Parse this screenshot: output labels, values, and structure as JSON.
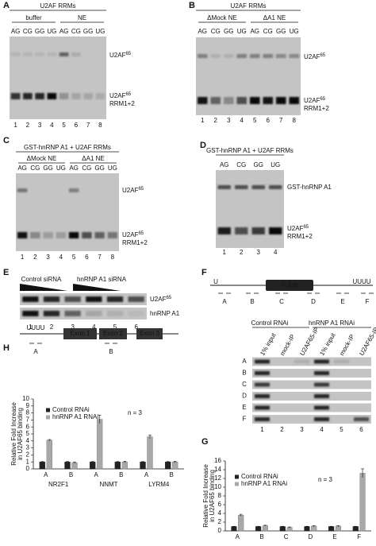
{
  "panels": {
    "A": {
      "label": "A",
      "title": "U2AF RRMs",
      "groups": [
        "buffer",
        "NE"
      ],
      "lanes": [
        "AG",
        "CG",
        "GG",
        "UG",
        "AG",
        "CG",
        "GG",
        "UG"
      ],
      "lane_numbers": [
        1,
        2,
        3,
        4,
        5,
        6,
        7,
        8
      ],
      "markers": [
        {
          "text": "U2AF",
          "sup": "65"
        },
        {
          "text": "U2AF",
          "sup": "65",
          "line2": "RRM1+2"
        }
      ]
    },
    "B": {
      "label": "B",
      "title": "U2AF RRMs",
      "groups": [
        "ΔMock NE",
        "ΔA1 NE"
      ],
      "lanes": [
        "AG",
        "CG",
        "GG",
        "UG",
        "AG",
        "CG",
        "GG",
        "UG"
      ],
      "lane_numbers": [
        1,
        2,
        3,
        4,
        5,
        6,
        7,
        8
      ],
      "markers": [
        {
          "text": "U2AF",
          "sup": "65"
        },
        {
          "text": "U2AF",
          "sup": "65",
          "line2": "RRM1+2"
        }
      ]
    },
    "C": {
      "label": "C",
      "title": "GST-hnRNP A1 + U2AF RRMs",
      "groups": [
        "ΔMock NE",
        "ΔA1 NE"
      ],
      "lanes": [
        "AG",
        "CG",
        "GG",
        "UG",
        "AG",
        "CG",
        "GG",
        "UG"
      ],
      "lane_numbers": [
        1,
        2,
        3,
        4,
        5,
        6,
        7,
        8
      ],
      "markers": [
        {
          "text": "U2AF",
          "sup": "65"
        },
        {
          "text": "U2AF",
          "sup": "65",
          "line2": "RRM1+2"
        }
      ]
    },
    "D": {
      "label": "D",
      "title": "GST-hnRNP A1 + U2AF RRMs",
      "lanes": [
        "AG",
        "CG",
        "GG",
        "UG"
      ],
      "lane_numbers": [
        1,
        2,
        3,
        4
      ],
      "markers": [
        {
          "text": "GST-hnRNP A1"
        },
        {
          "text": "U2AF",
          "sup": "65",
          "line2": "RRM1+2"
        }
      ]
    },
    "E": {
      "label": "E",
      "groups": [
        "Control siRNA",
        "hnRNP A1 siRNA"
      ],
      "markers": [
        {
          "text": "U2AF",
          "sup": "65"
        },
        {
          "text": "hnRNP A1"
        }
      ],
      "lane_numbers": [
        1,
        2,
        3,
        4,
        5,
        6
      ]
    },
    "F": {
      "label": "F",
      "gene": "c-Jun",
      "left_element": "U",
      "right_element": "UUUU",
      "regions": [
        "A",
        "B",
        "C",
        "D",
        "E",
        "F"
      ],
      "groups": [
        "Control RNAi",
        "hnRNP A1 RNAi"
      ],
      "lanes": [
        "1% input",
        "mock-IP",
        "U2AF65-IP",
        "1% input",
        "mock-IP",
        "U2AF65-IP"
      ],
      "rows": [
        "A",
        "B",
        "C",
        "D",
        "E",
        "F"
      ],
      "lane_numbers": [
        1,
        2,
        3,
        4,
        5,
        6
      ]
    },
    "H": {
      "label": "H",
      "element": "UUUU",
      "exons": [
        "Exon 1",
        "Exon 2",
        "Exon 3"
      ],
      "regions": [
        "A",
        "B"
      ]
    },
    "G": {
      "label": "G"
    }
  },
  "chart_data": [
    {
      "type": "bar",
      "y_label": [
        "Relative Fold Increase",
        "in U2AF65 binding"
      ],
      "categories": [
        "A",
        "B",
        "A",
        "B",
        "A",
        "B"
      ],
      "groups": [
        "NR2F1",
        "NNMT",
        "LYRM4"
      ],
      "series": [
        {
          "name": "Control RNAi",
          "color": "#222222",
          "values": [
            1,
            1,
            1,
            1,
            1,
            1
          ],
          "errors": [
            0.05,
            0.05,
            0.05,
            0.05,
            0.05,
            0.05
          ]
        },
        {
          "name": "hnRNP A1 RNAi",
          "color": "#a8a8a8",
          "values": [
            4.1,
            0.9,
            7.1,
            1,
            4.6,
            1
          ],
          "errors": [
            0.1,
            0.1,
            0.6,
            0.1,
            0.25,
            0.1
          ]
        }
      ],
      "ylim": [
        0,
        10
      ],
      "yticks": [
        0,
        1,
        2,
        3,
        4,
        5,
        6,
        7,
        8,
        9,
        10
      ],
      "annotation": "n = 3",
      "legend": "upper left"
    },
    {
      "type": "bar",
      "y_label": [
        "Relative Fold Increase",
        "in U2AF65 binding"
      ],
      "categories": [
        "A",
        "B",
        "C",
        "D",
        "E",
        "F"
      ],
      "series": [
        {
          "name": "Control RNAi",
          "color": "#222222",
          "values": [
            1,
            1,
            1,
            1,
            1,
            1
          ],
          "errors": [
            0.05,
            0.05,
            0.05,
            0.05,
            0.05,
            0.05
          ]
        },
        {
          "name": "hnRNP A1 RNAi",
          "color": "#a8a8a8",
          "values": [
            3.6,
            1.2,
            0.8,
            1.1,
            1.1,
            13.2
          ],
          "errors": [
            0.2,
            0.1,
            0.1,
            0.1,
            0.1,
            1.0
          ]
        }
      ],
      "ylim": [
        0,
        16
      ],
      "yticks": [
        0,
        2,
        4,
        6,
        8,
        10,
        12,
        14,
        16
      ],
      "annotation": "n = 3",
      "legend": "upper left"
    }
  ]
}
